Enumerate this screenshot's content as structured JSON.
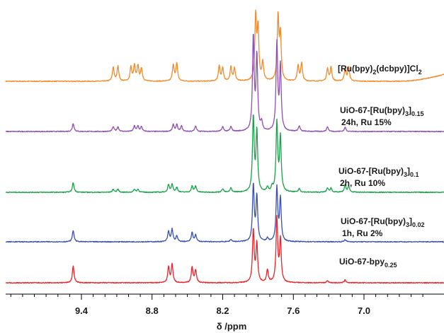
{
  "chart_data": {
    "type": "line",
    "xlabel": "δ /ppm",
    "xlim": [
      10.0,
      6.5
    ],
    "x_reversed": true,
    "tick_labels": [
      "9.4",
      "8.8",
      "8.2",
      "7.6",
      "7.0"
    ],
    "ticks": [
      9.4,
      8.8,
      8.2,
      7.6,
      7.0
    ],
    "grid": false,
    "series": [
      {
        "name_parts": [
          {
            "text": "[Ru(bpy)",
            "sub": false
          },
          {
            "text": "2",
            "sub": true
          },
          {
            "text": "(dcbpy)]Cl",
            "sub": false
          },
          {
            "text": "2",
            "sub": true
          }
        ],
        "sample_lines": [],
        "color": "#f28a2b",
        "peaks": [
          {
            "x": 9.13,
            "h": 22
          },
          {
            "x": 9.09,
            "h": 24
          },
          {
            "x": 8.98,
            "h": 22
          },
          {
            "x": 8.95,
            "h": 24
          },
          {
            "x": 8.92,
            "h": 24
          },
          {
            "x": 8.89,
            "h": 20
          },
          {
            "x": 8.62,
            "h": 26
          },
          {
            "x": 8.59,
            "h": 28
          },
          {
            "x": 8.23,
            "h": 24
          },
          {
            "x": 8.2,
            "h": 20
          },
          {
            "x": 8.13,
            "h": 22
          },
          {
            "x": 8.1,
            "h": 20
          },
          {
            "x": 7.92,
            "h": 100
          },
          {
            "x": 7.9,
            "h": 80
          },
          {
            "x": 7.86,
            "h": 28
          },
          {
            "x": 7.73,
            "h": 100
          },
          {
            "x": 7.71,
            "h": 70
          },
          {
            "x": 7.56,
            "h": 24
          },
          {
            "x": 7.53,
            "h": 28
          },
          {
            "x": 7.31,
            "h": 20
          },
          {
            "x": 7.28,
            "h": 22
          },
          {
            "x": 7.16,
            "h": 20
          },
          {
            "x": 7.13,
            "h": 22
          }
        ]
      },
      {
        "name_parts": [
          {
            "text": "UiO-67-[Ru(bpy)",
            "sub": false
          },
          {
            "text": "3",
            "sub": true
          },
          {
            "text": "]",
            "sub": false
          },
          {
            "text": "0.15",
            "sub": true
          }
        ],
        "sample_lines": [
          "24h, Ru 15%"
        ],
        "color": "#8e4fb0",
        "peaks": [
          {
            "x": 9.47,
            "h": 12
          },
          {
            "x": 9.13,
            "h": 7
          },
          {
            "x": 9.09,
            "h": 7
          },
          {
            "x": 8.95,
            "h": 8
          },
          {
            "x": 8.92,
            "h": 8
          },
          {
            "x": 8.89,
            "h": 7
          },
          {
            "x": 8.62,
            "h": 10
          },
          {
            "x": 8.59,
            "h": 10
          },
          {
            "x": 8.55,
            "h": 8
          },
          {
            "x": 8.43,
            "h": 8
          },
          {
            "x": 8.2,
            "h": 7
          },
          {
            "x": 8.13,
            "h": 7
          },
          {
            "x": 7.94,
            "h": 140
          },
          {
            "x": 7.91,
            "h": 110
          },
          {
            "x": 7.87,
            "h": 12
          },
          {
            "x": 7.74,
            "h": 130
          },
          {
            "x": 7.71,
            "h": 95
          },
          {
            "x": 7.55,
            "h": 8
          },
          {
            "x": 7.31,
            "h": 7
          },
          {
            "x": 7.16,
            "h": 6
          }
        ]
      },
      {
        "name_parts": [
          {
            "text": "UiO-67-[Ru(bpy)",
            "sub": false
          },
          {
            "text": "3",
            "sub": true
          },
          {
            "text": "]",
            "sub": false
          },
          {
            "text": "0.1",
            "sub": true
          }
        ],
        "sample_lines": [
          "2h, Ru 10%"
        ],
        "color": "#1aa14a",
        "peaks": [
          {
            "x": 9.47,
            "h": 16
          },
          {
            "x": 9.13,
            "h": 5
          },
          {
            "x": 9.09,
            "h": 5
          },
          {
            "x": 8.95,
            "h": 5
          },
          {
            "x": 8.92,
            "h": 5
          },
          {
            "x": 8.66,
            "h": 12
          },
          {
            "x": 8.63,
            "h": 14
          },
          {
            "x": 8.59,
            "h": 8
          },
          {
            "x": 8.46,
            "h": 10
          },
          {
            "x": 8.43,
            "h": 10
          },
          {
            "x": 8.2,
            "h": 6
          },
          {
            "x": 8.13,
            "h": 7
          },
          {
            "x": 7.94,
            "h": 125
          },
          {
            "x": 7.91,
            "h": 100
          },
          {
            "x": 7.82,
            "h": 8
          },
          {
            "x": 7.78,
            "h": 8
          },
          {
            "x": 7.74,
            "h": 115
          },
          {
            "x": 7.71,
            "h": 90
          },
          {
            "x": 7.55,
            "h": 6
          },
          {
            "x": 7.31,
            "h": 7
          },
          {
            "x": 7.28,
            "h": 7
          },
          {
            "x": 7.16,
            "h": 12
          },
          {
            "x": 7.13,
            "h": 10
          }
        ]
      },
      {
        "name_parts": [
          {
            "text": "UiO-67-[Ru(bpy)",
            "sub": false
          },
          {
            "text": "3",
            "sub": true
          },
          {
            "text": "]",
            "sub": false
          },
          {
            "text": "0.02",
            "sub": true
          }
        ],
        "sample_lines": [
          "1h, Ru 2%"
        ],
        "color": "#3a4fb0",
        "peaks": [
          {
            "x": 9.47,
            "h": 20
          },
          {
            "x": 8.66,
            "h": 18
          },
          {
            "x": 8.63,
            "h": 22
          },
          {
            "x": 8.59,
            "h": 10
          },
          {
            "x": 8.46,
            "h": 16
          },
          {
            "x": 8.43,
            "h": 12
          },
          {
            "x": 8.13,
            "h": 4
          },
          {
            "x": 7.94,
            "h": 100
          },
          {
            "x": 7.91,
            "h": 80
          },
          {
            "x": 7.82,
            "h": 6
          },
          {
            "x": 7.74,
            "h": 95
          },
          {
            "x": 7.71,
            "h": 75
          },
          {
            "x": 7.16,
            "h": 4
          }
        ]
      },
      {
        "name_parts": [
          {
            "text": "UiO-67-bpy",
            "sub": false
          },
          {
            "text": "0.25",
            "sub": true
          }
        ],
        "sample_lines": [],
        "color": "#e8232a",
        "peaks": [
          {
            "x": 9.47,
            "h": 24
          },
          {
            "x": 8.66,
            "h": 22
          },
          {
            "x": 8.63,
            "h": 26
          },
          {
            "x": 8.46,
            "h": 22
          },
          {
            "x": 8.43,
            "h": 18
          },
          {
            "x": 7.94,
            "h": 75
          },
          {
            "x": 7.91,
            "h": 55
          },
          {
            "x": 7.82,
            "h": 18
          },
          {
            "x": 7.74,
            "h": 90
          },
          {
            "x": 7.71,
            "h": 60
          },
          {
            "x": 7.31,
            "h": 3
          },
          {
            "x": 7.16,
            "h": 4
          }
        ]
      }
    ]
  }
}
